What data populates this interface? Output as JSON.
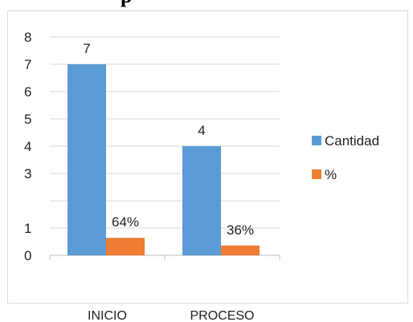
{
  "title_fragment": "p",
  "chart_data": {
    "type": "bar",
    "title": "",
    "xlabel": "",
    "ylabel": "",
    "categories": [
      "INICIO",
      "PROCESO"
    ],
    "y_tick_labels": [
      "0",
      "1",
      "3",
      "4",
      "5",
      "6",
      "7",
      "8"
    ],
    "ylim": [
      0,
      8
    ],
    "grid": true,
    "legend_position": "right",
    "series": [
      {
        "name": "Cantidad",
        "values": [
          7,
          4
        ],
        "labels": [
          "7",
          "4"
        ],
        "color": "#5b9bd5"
      },
      {
        "name": "%",
        "values": [
          0.64,
          0.36
        ],
        "labels": [
          "64%",
          "36%"
        ],
        "color": "#ed7d31"
      }
    ]
  }
}
